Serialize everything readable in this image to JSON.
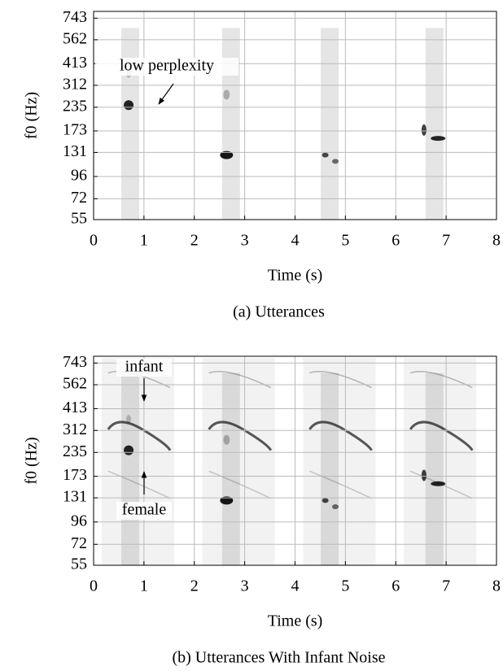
{
  "chart_data": [
    {
      "type": "spectrogram",
      "xlabel": "Time (s)",
      "ylabel": "f0 (Hz)",
      "caption": "(a) Utterances",
      "xlim": [
        0,
        8
      ],
      "xticks": [
        0,
        1,
        2,
        3,
        4,
        5,
        6,
        7,
        8
      ],
      "ylim": [
        55,
        811
      ],
      "yticks": [
        55,
        72,
        96,
        131,
        173,
        235,
        312,
        413,
        562,
        743
      ],
      "log_scale": true,
      "grid": true,
      "annotations": [
        "low perplexity"
      ]
    },
    {
      "type": "spectrogram",
      "xlabel": "Time (s)",
      "ylabel": "f0 (Hz)",
      "caption": "(b) Utterances With Infant Noise",
      "xlim": [
        0,
        8
      ],
      "xticks": [
        0,
        1,
        2,
        3,
        4,
        5,
        6,
        7,
        8
      ],
      "ylim": [
        55,
        811
      ],
      "yticks": [
        55,
        72,
        96,
        131,
        173,
        235,
        312,
        413,
        562,
        743
      ],
      "log_scale": true,
      "grid": true,
      "annotations": [
        "infant",
        "female"
      ]
    }
  ]
}
